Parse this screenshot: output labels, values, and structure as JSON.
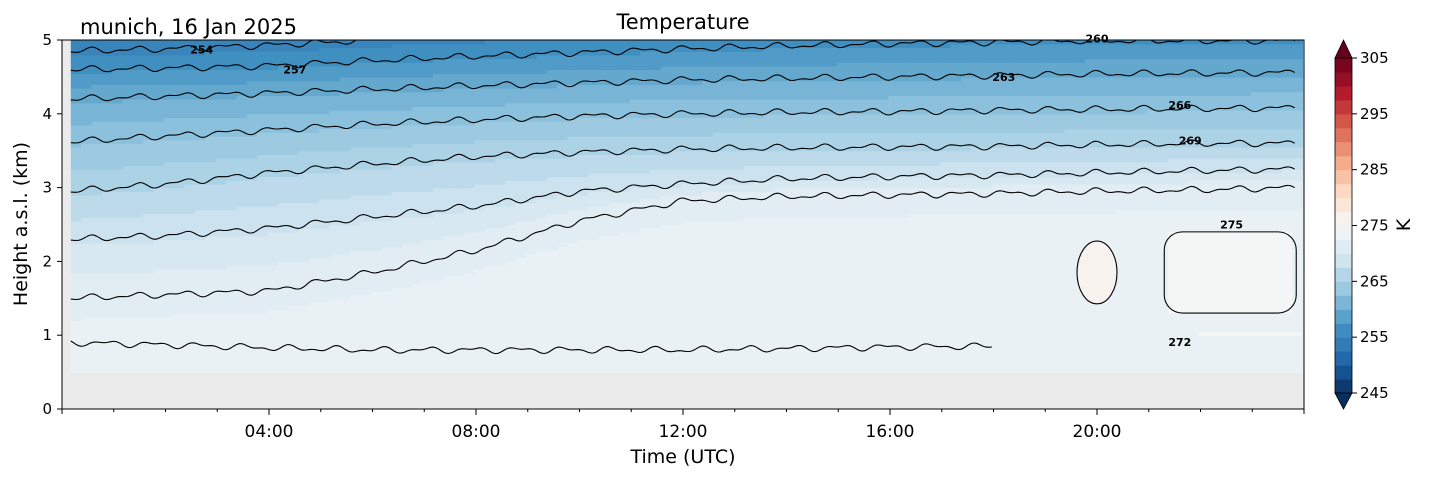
{
  "chart_data": {
    "type": "heatmap",
    "title": "Temperature",
    "subtitle": "munich, 16 Jan 2025",
    "xlabel": "Time (UTC)",
    "ylabel": "Height a.s.l. (km)",
    "xlim": [
      0,
      24
    ],
    "ylim": [
      0,
      5
    ],
    "x_ticks": [
      4,
      8,
      12,
      16,
      20
    ],
    "x_tick_labels": [
      "04:00",
      "08:00",
      "12:00",
      "16:00",
      "20:00"
    ],
    "y_ticks": [
      0,
      1,
      2,
      3,
      4,
      5
    ],
    "y_tick_labels": [
      "0",
      "1",
      "2",
      "3",
      "4",
      "5"
    ],
    "colorbar": {
      "label": "K",
      "range": [
        245,
        305
      ],
      "ticks": [
        245,
        255,
        265,
        275,
        285,
        295,
        305
      ],
      "tick_labels": [
        "245",
        "255",
        "265",
        "275",
        "285",
        "295",
        "305"
      ],
      "colormap": "RdBu_r",
      "extend": "both"
    },
    "missing_below_km": 0.5,
    "missing_color": "#ebebeb",
    "data_start_hour": 0.17,
    "data_end_hour": 23.85,
    "contour_levels": [
      {
        "level": 254,
        "label": "254",
        "label_at": [
          2.7,
          4.87
        ]
      },
      {
        "level": 257,
        "label": "257",
        "label_at": [
          4.5,
          4.6
        ]
      },
      {
        "level": 260,
        "label": "260",
        "label_at": [
          20.0,
          5.02
        ]
      },
      {
        "level": 263,
        "label": "263",
        "label_at": [
          18.2,
          4.5
        ]
      },
      {
        "level": 266,
        "label": "266",
        "label_at": [
          21.6,
          4.12
        ]
      },
      {
        "level": 269,
        "label": "269",
        "label_at": [
          21.8,
          3.64
        ]
      },
      {
        "level": 272,
        "label": "272",
        "label_at": [
          21.6,
          0.91
        ]
      },
      {
        "level": 275,
        "label": "275",
        "label_at": [
          22.6,
          2.5
        ]
      }
    ],
    "isotherm_heights": {
      "hours": [
        0.17,
        2,
        4,
        6,
        8,
        10,
        12,
        14,
        16,
        18,
        20,
        22,
        23.85
      ],
      "h254": [
        4.85,
        4.88,
        4.93,
        5.0,
        null,
        null,
        null,
        null,
        null,
        null,
        null,
        null,
        null
      ],
      "h257": [
        4.6,
        4.62,
        4.65,
        4.72,
        4.78,
        4.83,
        4.88,
        4.92,
        4.95,
        4.97,
        4.99,
        4.99,
        4.99
      ],
      "h260": [
        4.2,
        4.24,
        4.28,
        4.33,
        4.38,
        4.42,
        4.46,
        4.48,
        4.5,
        4.52,
        4.54,
        4.55,
        4.56
      ],
      "h263": [
        3.62,
        3.7,
        3.78,
        3.86,
        3.92,
        3.97,
        4.0,
        4.02,
        4.03,
        4.05,
        4.06,
        4.07,
        4.08
      ],
      "h266": [
        2.95,
        3.05,
        3.2,
        3.32,
        3.42,
        3.48,
        3.52,
        3.54,
        3.55,
        3.56,
        3.58,
        3.6,
        3.6
      ],
      "h269": [
        2.3,
        2.35,
        2.45,
        2.6,
        2.75,
        2.95,
        3.05,
        3.12,
        3.15,
        3.17,
        3.2,
        3.23,
        3.25
      ],
      "h272": [
        1.5,
        1.55,
        1.6,
        1.85,
        2.15,
        2.55,
        2.82,
        2.88,
        2.9,
        2.92,
        2.95,
        2.97,
        3.0
      ],
      "h272_low": [
        0.9,
        0.87,
        0.83,
        0.8,
        0.8,
        0.8,
        0.8,
        0.82,
        0.84,
        0.85,
        null,
        null,
        null
      ]
    },
    "warm_region_275": {
      "x_range": [
        21.3,
        23.85
      ],
      "y_range": [
        1.3,
        2.4
      ],
      "value": 276
    }
  }
}
